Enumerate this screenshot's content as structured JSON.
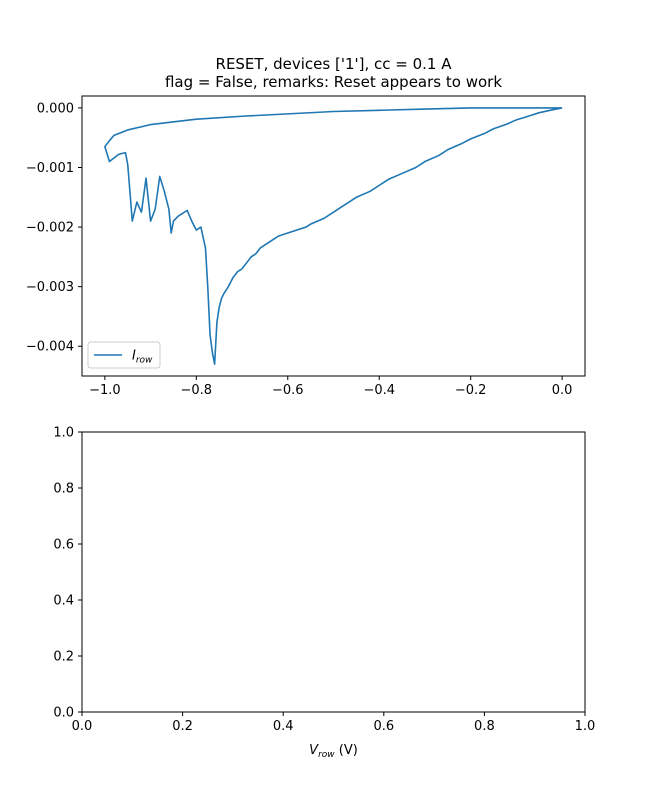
{
  "chart_data": [
    {
      "type": "line",
      "title": [
        "RESET, devices ['1'], cc = 0.1 A",
        "flag = False, remarks: Reset appears to work"
      ],
      "xlabel": "",
      "ylabel": "",
      "xlim": [
        -1.05,
        0.05
      ],
      "ylim": [
        -0.0045,
        0.0002
      ],
      "xticks": [
        -1.0,
        -0.8,
        -0.6,
        -0.4,
        -0.2,
        0.0
      ],
      "xtick_labels": [
        "−1.0",
        "−0.8",
        "−0.6",
        "−0.4",
        "−0.2",
        "0.0"
      ],
      "yticks": [
        0.0,
        -0.001,
        -0.002,
        -0.003,
        -0.004
      ],
      "ytick_labels": [
        "0.000",
        "−0.001",
        "−0.002",
        "−0.003",
        "−0.004"
      ],
      "grid": false,
      "legend": {
        "placement": "lower-left",
        "entries": [
          {
            "base": "I",
            "sub": "row",
            "color": "#1f77b4"
          }
        ]
      },
      "series": [
        {
          "name": "I_row",
          "color": "#1f77b4",
          "x": [
            0.0,
            -0.05,
            -0.1,
            -0.15,
            -0.2,
            -0.3,
            -0.4,
            -0.5,
            -0.6,
            -0.7,
            -0.8,
            -0.9,
            -0.95,
            -0.98,
            -0.99,
            -1.0,
            -0.99,
            -0.97,
            -0.955,
            -0.95,
            -0.94,
            -0.93,
            -0.92,
            -0.91,
            -0.9,
            -0.89,
            -0.88,
            -0.87,
            -0.86,
            -0.855,
            -0.85,
            -0.84,
            -0.82,
            -0.81,
            -0.8,
            -0.79,
            -0.78,
            -0.775,
            -0.77,
            -0.765,
            -0.76,
            -0.755,
            -0.75,
            -0.745,
            -0.74,
            -0.73,
            -0.72,
            -0.71,
            -0.7,
            -0.69,
            -0.68,
            -0.67,
            -0.66,
            -0.65,
            -0.64,
            -0.63,
            -0.62,
            -0.6,
            -0.58,
            -0.56,
            -0.55,
            -0.52,
            -0.5,
            -0.48,
            -0.45,
            -0.42,
            -0.4,
            -0.38,
            -0.35,
            -0.32,
            -0.3,
            -0.27,
            -0.25,
            -0.22,
            -0.2,
            -0.17,
            -0.15,
            -0.12,
            -0.1,
            -0.07,
            -0.05,
            -0.02,
            0.0
          ],
          "y": [
            0.0,
            0.0,
            0.0,
            0.0,
            0.0,
            -2e-05,
            -4e-05,
            -6e-05,
            -0.0001,
            -0.00014,
            -0.00019,
            -0.00028,
            -0.00037,
            -0.00046,
            -0.00055,
            -0.00065,
            -0.0009,
            -0.00078,
            -0.00075,
            -0.00095,
            -0.0019,
            -0.00158,
            -0.00175,
            -0.00118,
            -0.0019,
            -0.0017,
            -0.00115,
            -0.0014,
            -0.0017,
            -0.0021,
            -0.0019,
            -0.00182,
            -0.00172,
            -0.0019,
            -0.00205,
            -0.002,
            -0.00235,
            -0.003,
            -0.0038,
            -0.0041,
            -0.0043,
            -0.0036,
            -0.00335,
            -0.0032,
            -0.00312,
            -0.003,
            -0.00285,
            -0.00275,
            -0.0027,
            -0.0026,
            -0.0025,
            -0.00245,
            -0.00235,
            -0.0023,
            -0.00225,
            -0.0022,
            -0.00215,
            -0.0021,
            -0.00205,
            -0.002,
            -0.00195,
            -0.00185,
            -0.00175,
            -0.00165,
            -0.0015,
            -0.0014,
            -0.0013,
            -0.0012,
            -0.0011,
            -0.001,
            -0.0009,
            -0.0008,
            -0.0007,
            -0.0006,
            -0.00052,
            -0.00043,
            -0.00035,
            -0.00027,
            -0.0002,
            -0.00013,
            -8e-05,
            -3e-05,
            0.0
          ]
        }
      ]
    },
    {
      "type": "line",
      "title": "",
      "xlabel": {
        "base": "V",
        "sub": "row",
        "suffix": " (V)"
      },
      "ylabel": "",
      "xlim": [
        0.0,
        1.0
      ],
      "ylim": [
        0.0,
        1.0
      ],
      "xticks": [
        0.0,
        0.2,
        0.4,
        0.6,
        0.8,
        1.0
      ],
      "xtick_labels": [
        "0.0",
        "0.2",
        "0.4",
        "0.6",
        "0.8",
        "1.0"
      ],
      "yticks": [
        0.0,
        0.2,
        0.4,
        0.6,
        0.8,
        1.0
      ],
      "ytick_labels": [
        "0.0",
        "0.2",
        "0.4",
        "0.6",
        "0.8",
        "1.0"
      ],
      "grid": false,
      "series": []
    }
  ]
}
